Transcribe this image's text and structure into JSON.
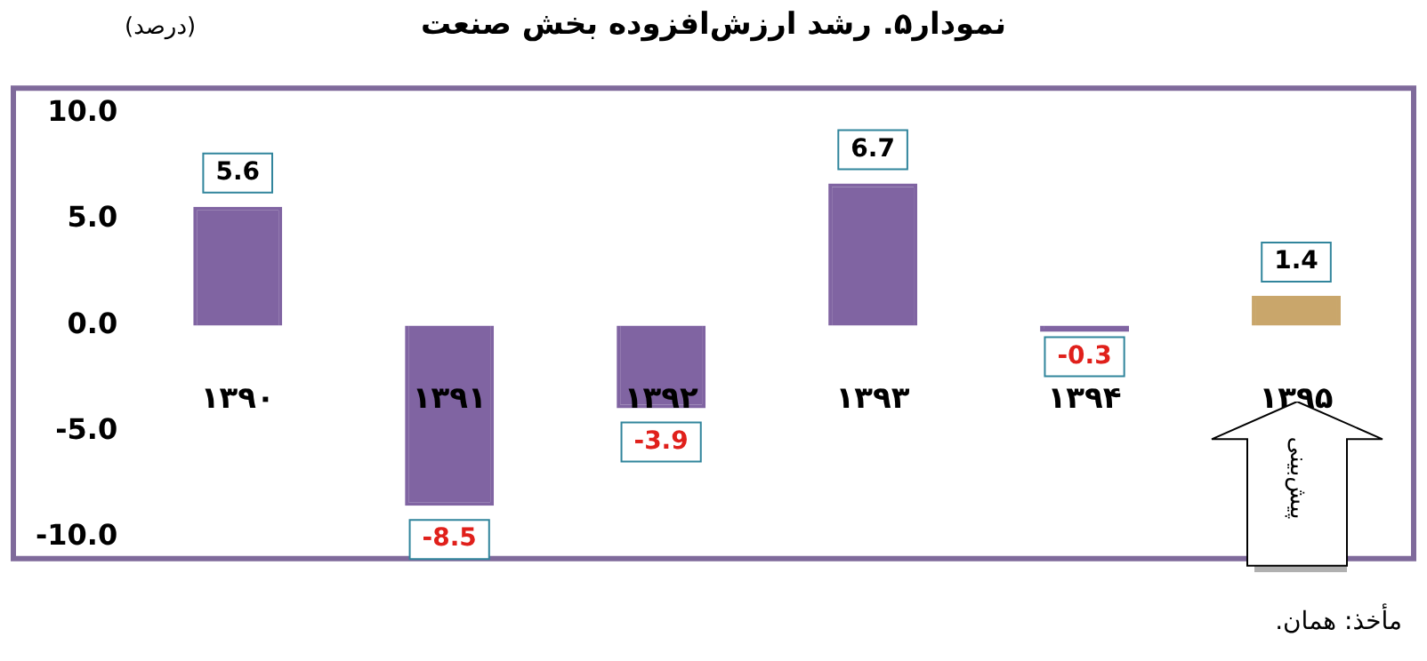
{
  "chart_data": {
    "type": "bar",
    "title": "نمودار۵. رشد ارزش‌افزوده بخش صنعت",
    "ylabel": "(درصد)",
    "categories": [
      "۱۳۹۰",
      "۱۳۹۱",
      "۱۳۹۲",
      "۱۳۹۳",
      "۱۳۹۴",
      "۱۳۹۵"
    ],
    "values": [
      5.6,
      -8.5,
      -3.9,
      6.7,
      -0.3,
      1.4
    ],
    "colors": [
      "#8064a2",
      "#8064a2",
      "#8064a2",
      "#8064a2",
      "#8064a2",
      "#c9a66b"
    ],
    "ylim": [
      -11,
      11.2
    ],
    "yticks": [
      {
        "value": -10,
        "label": "-10.0"
      },
      {
        "value": -5,
        "label": "-5.0"
      },
      {
        "value": 0,
        "label": "0.0"
      },
      {
        "value": 5,
        "label": "5.0"
      },
      {
        "value": 10,
        "label": "10.0"
      }
    ],
    "data_labels": true,
    "grid": false,
    "legend": false,
    "annotations": [
      "پیش‌بینی",
      "مأخذ: همان."
    ]
  }
}
